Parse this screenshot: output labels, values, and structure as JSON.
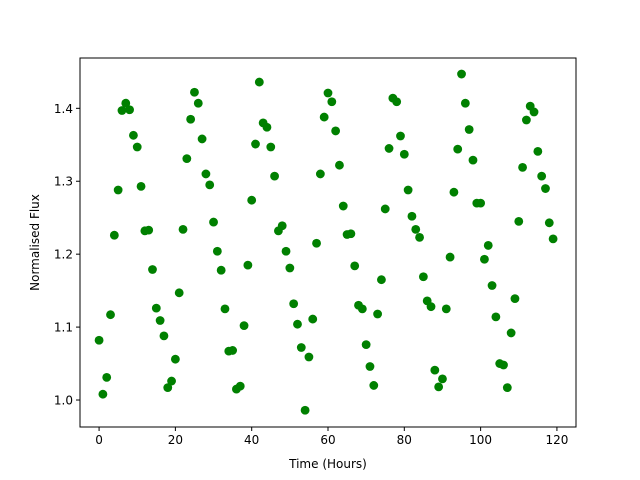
{
  "chart_data": {
    "type": "scatter",
    "xlabel": "Time (Hours)",
    "ylabel": "Normalised Flux",
    "xlim": [
      -5,
      125
    ],
    "ylim": [
      0.963,
      1.469
    ],
    "xticks": [
      0,
      20,
      40,
      60,
      80,
      100,
      120
    ],
    "yticks": [
      1.0,
      1.1,
      1.2,
      1.3,
      1.4
    ],
    "xtick_labels": [
      "0",
      "20",
      "40",
      "60",
      "80",
      "100",
      "120"
    ],
    "ytick_labels": [
      "1.0",
      "1.1",
      "1.2",
      "1.3",
      "1.4"
    ],
    "grid": false,
    "marker_color": "#008000",
    "series": [
      {
        "x": [
          0,
          1,
          2,
          3,
          4,
          5,
          6,
          7,
          8,
          9,
          10,
          11,
          12,
          13,
          14,
          15,
          16,
          17,
          18,
          19,
          20,
          21,
          22,
          23,
          24,
          25,
          26,
          27,
          28,
          29,
          30,
          31,
          32,
          33,
          34,
          35,
          36,
          37,
          38,
          39,
          40,
          41,
          42,
          43,
          44,
          45,
          46,
          47,
          48,
          49,
          50,
          51,
          52,
          53,
          54,
          55,
          56,
          57,
          58,
          59,
          60,
          61,
          62,
          63,
          64,
          65,
          66,
          67,
          68,
          69,
          70,
          71,
          72,
          73,
          74,
          75,
          76,
          77,
          78,
          79,
          80,
          81,
          82,
          83,
          84,
          85,
          86,
          87,
          88,
          89,
          90,
          91,
          92,
          93,
          94,
          95,
          96,
          97,
          98,
          99,
          100,
          101,
          102,
          103,
          104,
          105,
          106,
          107,
          108,
          109,
          110,
          111,
          112,
          113,
          114,
          115,
          116,
          117,
          118,
          119
        ],
        "y": [
          1.082,
          1.008,
          1.031,
          1.117,
          1.226,
          1.288,
          1.397,
          1.407,
          1.398,
          1.363,
          1.347,
          1.293,
          1.232,
          1.233,
          1.179,
          1.126,
          1.109,
          1.088,
          1.017,
          1.026,
          1.056,
          1.147,
          1.234,
          1.331,
          1.385,
          1.422,
          1.407,
          1.358,
          1.31,
          1.295,
          1.244,
          1.204,
          1.178,
          1.125,
          1.067,
          1.068,
          1.015,
          1.019,
          1.102,
          1.185,
          1.274,
          1.351,
          1.436,
          1.38,
          1.374,
          1.347,
          1.307,
          1.232,
          1.239,
          1.204,
          1.181,
          1.132,
          1.104,
          1.072,
          0.986,
          1.059,
          1.111,
          1.215,
          1.31,
          1.388,
          1.421,
          1.409,
          1.369,
          1.322,
          1.266,
          1.227,
          1.228,
          1.184,
          1.13,
          1.125,
          1.076,
          1.046,
          1.02,
          1.118,
          1.165,
          1.262,
          1.345,
          1.414,
          1.409,
          1.362,
          1.337,
          1.288,
          1.252,
          1.234,
          1.223,
          1.169,
          1.136,
          1.128,
          1.041,
          1.018,
          1.029,
          1.125,
          1.196,
          1.285,
          1.344,
          1.447,
          1.407,
          1.371,
          1.329,
          1.27,
          1.27,
          1.193,
          1.212,
          1.157,
          1.114,
          1.05,
          1.048,
          1.017,
          1.092,
          1.139,
          1.245,
          1.319,
          1.384,
          1.403,
          1.395,
          1.341,
          1.307,
          1.29,
          1.243,
          1.221
        ]
      }
    ]
  }
}
